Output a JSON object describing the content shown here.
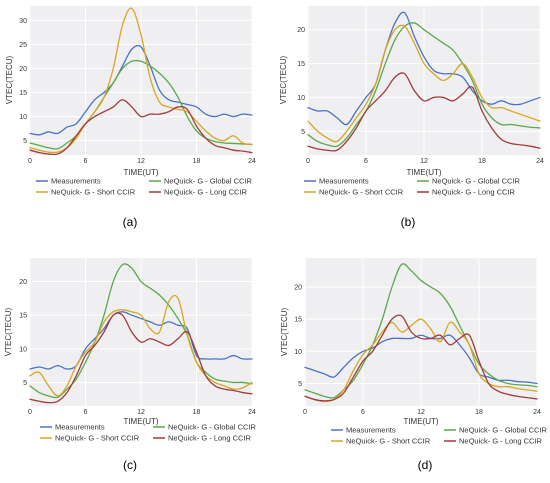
{
  "chart_data": [
    {
      "type": "line",
      "panel_label": "(a)",
      "xlabel": "TIME(UT)",
      "ylabel": "VTEC(TECU)",
      "xlim": [
        0,
        24
      ],
      "ylim": [
        2,
        33
      ],
      "xticks": [
        0,
        6,
        12,
        18,
        24
      ],
      "yticks": [
        5,
        10,
        15,
        20,
        25,
        30
      ],
      "grid": true,
      "legend": {
        "placement": "bottom",
        "columns": 2
      },
      "series": [
        {
          "name": "Measurements",
          "color": "#4a72c4",
          "x": [
            0,
            1,
            2,
            3,
            4,
            5,
            6,
            7,
            8,
            9,
            10,
            11,
            12,
            13,
            14,
            15,
            16,
            17,
            18,
            19,
            20,
            21,
            22,
            23,
            24
          ],
          "y": [
            6.5,
            6.2,
            6.8,
            6.5,
            7.8,
            8.5,
            11,
            13.5,
            15,
            17,
            20.5,
            24,
            24.5,
            20.5,
            15.5,
            13.5,
            13,
            12.5,
            12,
            10.5,
            10,
            10.5,
            10,
            10.5,
            10.3
          ]
        },
        {
          "name": "NeQuick- G - Global CCIR",
          "color": "#5aa84a",
          "x": [
            0,
            1,
            2,
            3,
            4,
            5,
            6,
            7,
            8,
            9,
            10,
            11,
            12,
            13,
            14,
            15,
            16,
            17,
            18,
            19,
            20,
            21,
            22,
            23,
            24
          ],
          "y": [
            4.5,
            4,
            3.5,
            3.3,
            4.5,
            6,
            8.5,
            11,
            14,
            17,
            20,
            21.5,
            21.5,
            20.5,
            19,
            17,
            14,
            10,
            7,
            5.5,
            4.8,
            4.5,
            4.4,
            4.3,
            4.2
          ]
        },
        {
          "name": "NeQuick- G - Short CCIR",
          "color": "#d9a521",
          "x": [
            0,
            1,
            2,
            3,
            4,
            5,
            6,
            7,
            8,
            9,
            10,
            11,
            12,
            13,
            14,
            15,
            16,
            17,
            18,
            19,
            20,
            21,
            22,
            23,
            24
          ],
          "y": [
            3.5,
            3,
            2.6,
            2.6,
            3.5,
            5.5,
            8.5,
            11,
            14,
            20,
            29,
            32.5,
            27,
            18,
            13,
            12,
            11.5,
            11,
            9,
            7,
            5.5,
            5,
            6,
            4.5,
            4.2
          ]
        },
        {
          "name": "NeQuick- G - Long CCIR",
          "color": "#a23a3a",
          "x": [
            0,
            1,
            2,
            3,
            4,
            5,
            6,
            7,
            8,
            9,
            10,
            11,
            12,
            13,
            14,
            15,
            16,
            17,
            18,
            19,
            20,
            21,
            22,
            23,
            24
          ],
          "y": [
            3,
            2.5,
            2.2,
            2.2,
            3.5,
            6,
            8.5,
            10,
            11,
            12,
            13.5,
            12,
            10,
            10.5,
            10.5,
            11,
            12,
            11.5,
            8,
            5.5,
            4,
            3.5,
            3,
            2.8,
            2.5
          ]
        }
      ]
    },
    {
      "type": "line",
      "panel_label": "(b)",
      "xlabel": "TIME(UT)",
      "ylabel": "VTEC(TECU)",
      "xlim": [
        0,
        24
      ],
      "ylim": [
        1.5,
        23.5
      ],
      "xticks": [
        0,
        6,
        12,
        18,
        24
      ],
      "yticks": [
        5,
        10,
        15,
        20
      ],
      "grid": true,
      "legend": {
        "placement": "bottom",
        "columns": 2
      },
      "series": [
        {
          "name": "Measurements",
          "color": "#4a72c4",
          "x": [
            0,
            1,
            2,
            3,
            4,
            5,
            6,
            7,
            8,
            9,
            10,
            11,
            12,
            13,
            14,
            15,
            16,
            17,
            18,
            19,
            20,
            21,
            22,
            23,
            24
          ],
          "y": [
            8.5,
            8,
            8,
            7,
            6,
            8,
            10,
            12,
            17,
            21,
            22.5,
            19,
            16,
            14,
            13.5,
            13.5,
            13,
            11,
            9.5,
            9,
            9.5,
            9,
            9,
            9.5,
            10
          ]
        },
        {
          "name": "NeQuick- G - Global CCIR",
          "color": "#5aa84a",
          "x": [
            0,
            1,
            2,
            3,
            4,
            5,
            6,
            7,
            8,
            9,
            10,
            11,
            12,
            13,
            14,
            15,
            16,
            17,
            18,
            19,
            20,
            21,
            22,
            23,
            24
          ],
          "y": [
            4.5,
            3.5,
            3,
            2.8,
            4,
            6,
            8,
            11,
            15,
            18.5,
            20.5,
            21,
            20,
            19,
            18,
            17,
            15,
            12.5,
            9,
            7,
            6,
            6,
            5.8,
            5.6,
            5.5
          ]
        },
        {
          "name": "NeQuick- G - Short CCIR",
          "color": "#d9a521",
          "x": [
            0,
            1,
            2,
            3,
            4,
            5,
            6,
            7,
            8,
            9,
            10,
            11,
            12,
            13,
            14,
            15,
            16,
            17,
            18,
            19,
            20,
            21,
            22,
            23,
            24
          ],
          "y": [
            6.5,
            5,
            4,
            3.5,
            5,
            7,
            9,
            12,
            17,
            20,
            20.5,
            18,
            15,
            13.5,
            12.5,
            13.5,
            15,
            13,
            10,
            8.5,
            8.5,
            8,
            7.5,
            7,
            6.5
          ]
        },
        {
          "name": "NeQuick- G - Long CCIR",
          "color": "#a23a3a",
          "x": [
            0,
            1,
            2,
            3,
            4,
            5,
            6,
            7,
            8,
            9,
            10,
            11,
            12,
            13,
            14,
            15,
            16,
            17,
            18,
            19,
            20,
            21,
            22,
            23,
            24
          ],
          "y": [
            2.8,
            2.4,
            2.2,
            2.2,
            3.5,
            5.5,
            8,
            9.5,
            11,
            13,
            13.5,
            11,
            9.5,
            10,
            10,
            9.5,
            10.5,
            11.5,
            8,
            5.5,
            3.8,
            3.2,
            3,
            2.8,
            2.5
          ]
        }
      ]
    },
    {
      "type": "line",
      "panel_label": "(c)",
      "xlabel": "TIME(UT)",
      "ylabel": "VTEC(TECU)",
      "xlim": [
        0,
        24
      ],
      "ylim": [
        1.5,
        23.5
      ],
      "xticks": [
        0,
        6,
        12,
        18,
        24
      ],
      "yticks": [
        5,
        10,
        15,
        20
      ],
      "grid": true,
      "legend": {
        "placement": "bottom",
        "columns": 2
      },
      "series": [
        {
          "name": "Measurements",
          "color": "#4a72c4",
          "x": [
            0,
            1,
            2,
            3,
            4,
            5,
            6,
            7,
            8,
            9,
            10,
            11,
            12,
            13,
            14,
            15,
            16,
            17,
            18,
            19,
            20,
            21,
            22,
            23,
            24
          ],
          "y": [
            7,
            7.3,
            7,
            7.5,
            7,
            7.5,
            10,
            11.5,
            13,
            15,
            15.5,
            15,
            14.5,
            14,
            13.5,
            14,
            13.5,
            13,
            9,
            8.5,
            8.5,
            8.5,
            9,
            8.5,
            8.5
          ]
        },
        {
          "name": "NeQuick- G - Global CCIR",
          "color": "#5aa84a",
          "x": [
            0,
            1,
            2,
            3,
            4,
            5,
            6,
            7,
            8,
            9,
            10,
            11,
            12,
            13,
            14,
            15,
            16,
            17,
            18,
            19,
            20,
            21,
            22,
            23,
            24
          ],
          "y": [
            4.5,
            3.5,
            3,
            2.8,
            4,
            5.5,
            8,
            11,
            15,
            20,
            22.5,
            22,
            20,
            19,
            18,
            16.5,
            14.5,
            12,
            8,
            6.5,
            5.5,
            5.2,
            5,
            5,
            4.8
          ]
        },
        {
          "name": "NeQuick- G - Short CCIR",
          "color": "#d9a521",
          "x": [
            0,
            1,
            2,
            3,
            4,
            5,
            6,
            7,
            8,
            9,
            10,
            11,
            12,
            13,
            14,
            15,
            16,
            17,
            18,
            19,
            20,
            21,
            22,
            23,
            24
          ],
          "y": [
            6,
            6.5,
            4.5,
            3,
            4.5,
            7.5,
            9.5,
            11,
            14,
            15.5,
            15.8,
            15.5,
            15,
            13,
            12.5,
            17,
            17.5,
            12,
            8,
            6,
            5,
            4.5,
            4,
            4.2,
            5
          ]
        },
        {
          "name": "NeQuick- G - Long CCIR",
          "color": "#a23a3a",
          "x": [
            0,
            1,
            2,
            3,
            4,
            5,
            6,
            7,
            8,
            9,
            10,
            11,
            12,
            13,
            14,
            15,
            16,
            17,
            18,
            19,
            20,
            21,
            22,
            23,
            24
          ],
          "y": [
            2.5,
            2.2,
            2,
            2.2,
            3.5,
            6,
            9,
            10.5,
            12.5,
            15,
            15,
            12.5,
            11,
            11.5,
            11,
            10.5,
            11.5,
            12.5,
            9.5,
            6,
            4.5,
            4,
            3.8,
            3.5,
            3.3
          ]
        }
      ]
    },
    {
      "type": "line",
      "panel_label": "(d)",
      "xlabel": "TIME(UT)",
      "ylabel": "VTEC(TECU)",
      "xlim": [
        0,
        24
      ],
      "ylim": [
        1.5,
        24.5
      ],
      "xticks": [
        0,
        6,
        12,
        18,
        24
      ],
      "yticks": [
        5,
        10,
        15,
        20
      ],
      "grid": true,
      "legend": {
        "placement": "bottom",
        "columns": 2
      },
      "series": [
        {
          "name": "Measurements",
          "color": "#4a72c4",
          "x": [
            0,
            1,
            2,
            3,
            4,
            5,
            6,
            7,
            8,
            9,
            10,
            11,
            12,
            13,
            14,
            15,
            16,
            17,
            18,
            19,
            20,
            21,
            22,
            23,
            24
          ],
          "y": [
            7.5,
            7,
            6.5,
            6,
            7.5,
            9,
            10,
            10.5,
            11.5,
            12,
            12,
            12,
            12.5,
            12,
            12,
            12.5,
            11,
            9,
            6.5,
            6,
            5.5,
            5.5,
            5.3,
            5.2,
            5
          ]
        },
        {
          "name": "NeQuick- G - Global CCIR",
          "color": "#5aa84a",
          "x": [
            0,
            1,
            2,
            3,
            4,
            5,
            6,
            7,
            8,
            9,
            10,
            11,
            12,
            13,
            14,
            15,
            16,
            17,
            18,
            19,
            20,
            21,
            22,
            23,
            24
          ],
          "y": [
            4,
            3.5,
            3,
            2.8,
            4,
            5.5,
            8,
            11,
            15,
            20,
            23.5,
            22.5,
            21,
            20,
            19,
            17,
            14,
            11,
            8,
            6.5,
            5.5,
            5,
            4.8,
            4.7,
            4.5
          ]
        },
        {
          "name": "NeQuick- G - Short CCIR",
          "color": "#d9a521",
          "x": [
            0,
            1,
            2,
            3,
            4,
            5,
            6,
            7,
            8,
            9,
            10,
            11,
            12,
            13,
            14,
            15,
            16,
            17,
            18,
            19,
            20,
            21,
            22,
            23,
            24
          ],
          "y": [
            3,
            2.5,
            2.2,
            2.5,
            4,
            7,
            9.5,
            11,
            13,
            14.5,
            13,
            14,
            15,
            13.5,
            11.5,
            14.5,
            13,
            11,
            6.5,
            5,
            4.5,
            4.5,
            4.2,
            4,
            3.8
          ]
        },
        {
          "name": "NeQuick- G - Long CCIR",
          "color": "#a23a3a",
          "x": [
            0,
            1,
            2,
            3,
            4,
            5,
            6,
            7,
            8,
            9,
            10,
            11,
            12,
            13,
            14,
            15,
            16,
            17,
            18,
            19,
            20,
            21,
            22,
            23,
            24
          ],
          "y": [
            3,
            2.5,
            2.3,
            2.5,
            3.5,
            6,
            8.5,
            10,
            12.5,
            15,
            15.5,
            13,
            12,
            12,
            12.5,
            11,
            12,
            12.5,
            8.5,
            5,
            3.8,
            3.3,
            3,
            2.8,
            2.6
          ]
        }
      ]
    }
  ]
}
